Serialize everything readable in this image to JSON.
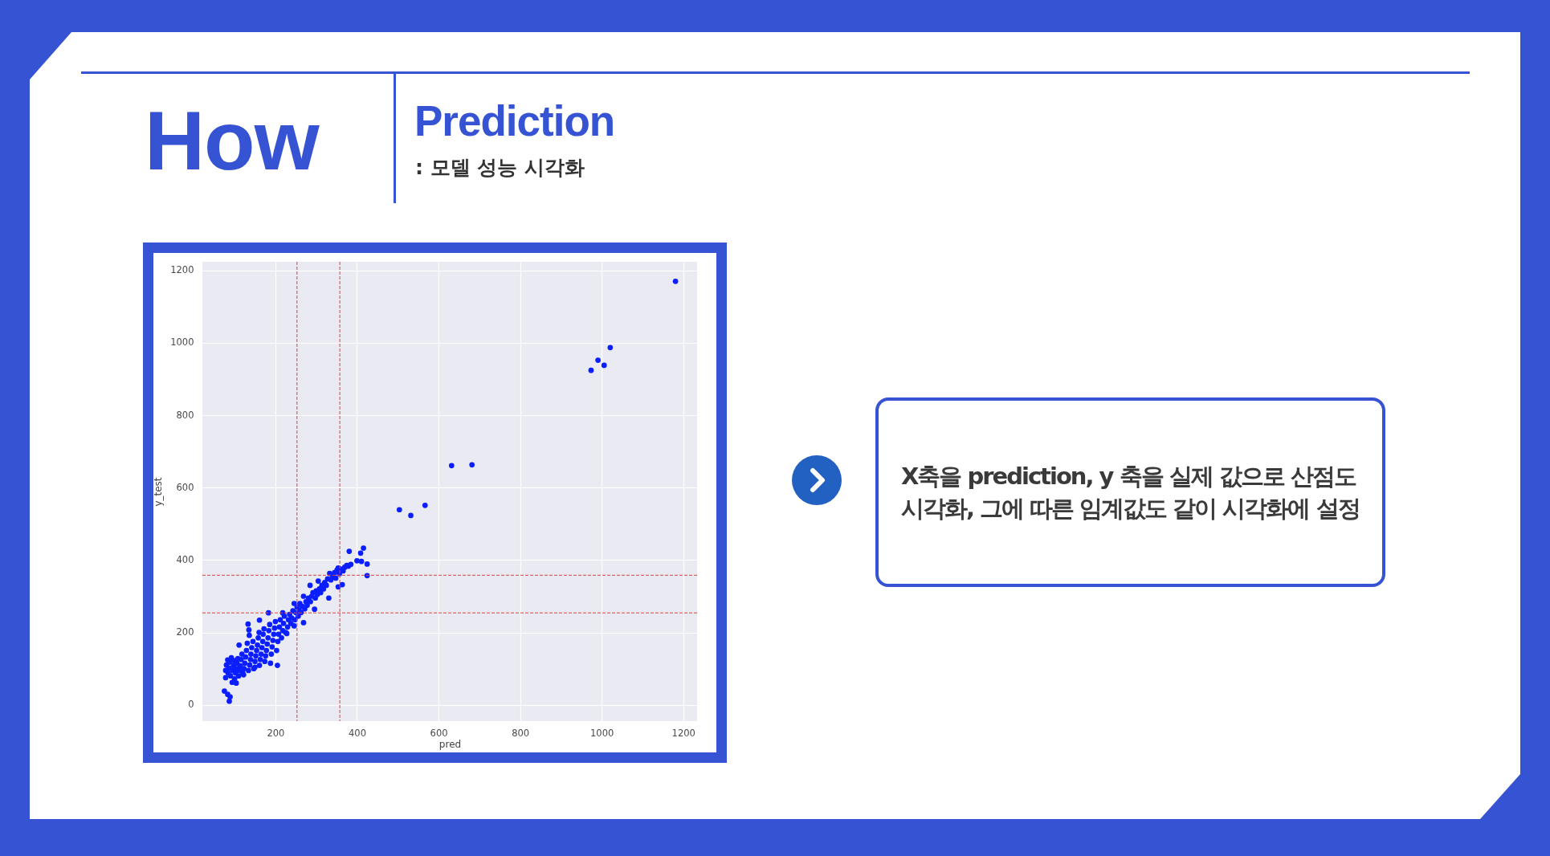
{
  "chart_data": {
    "type": "scatter",
    "title": "Prediction",
    "subtitle": ": 모델 성능 시각화",
    "annotations": [
      "How",
      "X축을 prediction, y 축을 실제 값으로 산점도 시각화, 그에 따른 임계값도 같이 시각화에 설정"
    ],
    "xlabel": "pred",
    "ylabel": "y_test",
    "color": "#0a1eff",
    "marker": "circle",
    "grid": true,
    "xlim": [
      21,
      1234
    ],
    "ylim": [
      -45,
      1224
    ],
    "xticks": [
      200,
      400,
      600,
      800,
      1000,
      1200
    ],
    "yticks": [
      0,
      200,
      400,
      600,
      800,
      1000,
      1200
    ],
    "ref_lines": [
      {
        "axis": "x",
        "value": 253,
        "color": "#d64545",
        "line_style": "dashed"
      },
      {
        "axis": "x",
        "value": 358,
        "color": "#d64545",
        "line_style": "dashed"
      },
      {
        "axis": "y",
        "value": 254,
        "color": "#d64545",
        "line_style": "dashed"
      },
      {
        "axis": "y",
        "value": 358,
        "color": "#d64545",
        "line_style": "dashed"
      }
    ],
    "x": [
      75,
      83,
      87,
      89,
      78,
      78,
      80,
      83,
      84,
      86,
      88,
      90,
      92,
      94,
      95,
      97,
      99,
      100,
      102,
      104,
      105,
      106,
      108,
      110,
      111,
      112,
      114,
      116,
      118,
      120,
      122,
      123,
      125,
      127,
      129,
      131,
      133,
      135,
      136,
      134,
      137,
      139,
      140,
      142,
      145,
      147,
      150,
      150,
      152,
      154,
      156,
      158,
      160,
      161,
      163,
      165,
      167,
      169,
      170,
      172,
      174,
      176,
      178,
      180,
      182,
      183,
      184,
      186,
      188,
      190,
      192,
      194,
      196,
      198,
      200,
      203,
      205,
      206,
      208,
      210,
      212,
      215,
      218,
      218,
      220,
      222,
      225,
      228,
      230,
      232,
      235,
      238,
      240,
      243,
      246,
      246,
      248,
      250,
      253,
      256,
      258,
      260,
      263,
      266,
      269,
      269,
      272,
      275,
      278,
      281,
      285,
      286,
      289,
      292,
      296,
      298,
      300,
      303,
      305,
      308,
      311,
      314,
      318,
      321,
      325,
      328,
      331,
      333,
      336,
      340,
      345,
      348,
      351,
      354,
      354,
      357,
      360,
      364,
      366,
      370,
      375,
      379,
      381,
      385,
      400,
      409,
      411,
      416,
      425,
      425,
      504,
      532,
      567,
      632,
      682,
      974,
      991,
      1006,
      1021,
      1181,
      161
    ],
    "values": [
      38,
      29,
      10,
      22,
      95,
      75,
      110,
      124,
      88,
      102,
      118,
      80,
      130,
      62,
      95,
      108,
      122,
      72,
      88,
      60,
      100,
      115,
      128,
      80,
      165,
      95,
      108,
      125,
      140,
      88,
      83,
      100,
      115,
      132,
      150,
      170,
      223,
      207,
      192,
      95,
      110,
      125,
      140,
      158,
      175,
      100,
      104,
      120,
      135,
      150,
      165,
      185,
      200,
      109,
      125,
      140,
      158,
      175,
      195,
      210,
      120,
      135,
      150,
      168,
      185,
      254,
      205,
      222,
      115,
      140,
      160,
      178,
      195,
      212,
      230,
      150,
      109,
      175,
      195,
      215,
      235,
      185,
      205,
      254,
      225,
      245,
      200,
      197,
      215,
      235,
      250,
      225,
      240,
      260,
      218,
      280,
      235,
      255,
      270,
      245,
      262,
      280,
      255,
      272,
      227,
      300,
      265,
      285,
      275,
      295,
      330,
      285,
      300,
      310,
      264,
      295,
      315,
      305,
      342,
      320,
      310,
      330,
      320,
      338,
      330,
      348,
      295,
      363,
      345,
      355,
      365,
      350,
      372,
      326,
      378,
      362,
      375,
      332,
      370,
      380,
      385,
      383,
      424,
      388,
      398,
      419,
      396,
      433,
      389,
      357,
      539,
      523,
      551,
      661,
      663,
      924,
      952,
      938,
      987,
      1170,
      234
    ]
  }
}
